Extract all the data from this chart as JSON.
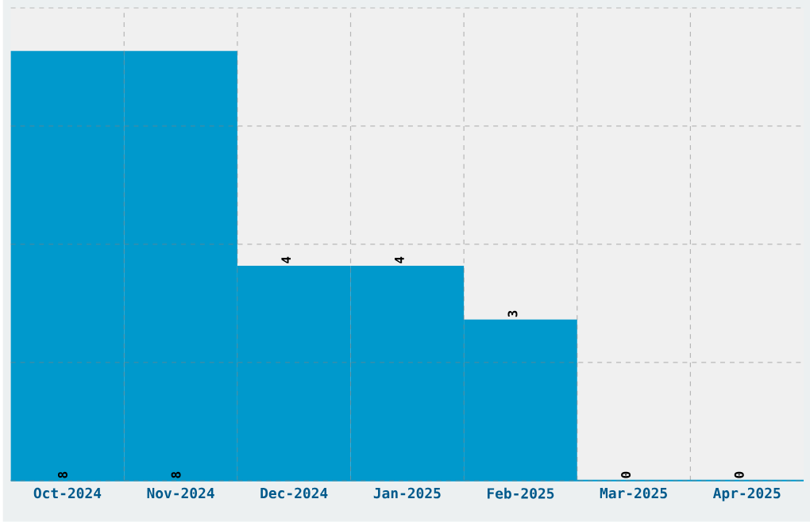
{
  "chart_data": {
    "type": "bar",
    "categories": [
      "Oct-2024",
      "Nov-2024",
      "Dec-2024",
      "Jan-2025",
      "Feb-2025",
      "Mar-2025",
      "Apr-2025"
    ],
    "values": [
      8,
      8,
      4,
      4,
      3,
      0,
      0
    ],
    "color": "#0099cc",
    "ylim": [
      0,
      8.8
    ],
    "yticks": [
      {
        "value": 0,
        "label": null
      },
      {
        "value": 2.2,
        "label": null
      },
      {
        "value": 4.4,
        "label": null
      },
      {
        "value": 6.6,
        "label": null
      },
      {
        "value": 8.8,
        "label": null
      }
    ],
    "tick_labels": "x",
    "grid": true,
    "data_labels": true
  }
}
